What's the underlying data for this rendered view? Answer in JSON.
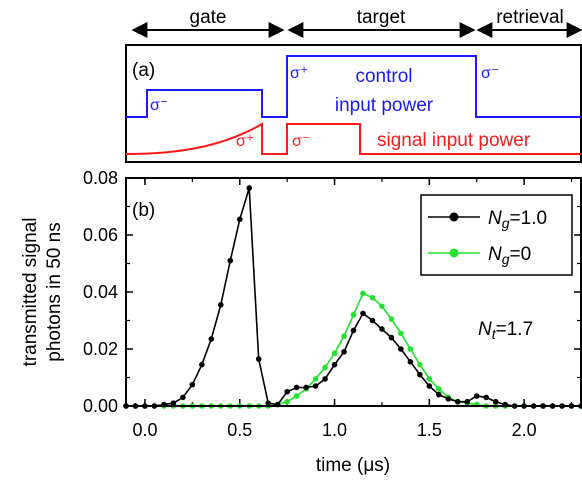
{
  "top_labels": {
    "gate": "gate",
    "target": "target",
    "retrieval": "retrieval"
  },
  "panel_a": {
    "label": "(a)",
    "control_label_line1": "control",
    "control_label_line2": "input power",
    "signal_label": "signal input power",
    "control_color": "#1a1aff",
    "signal_color": "#ff1a1a",
    "pulses": {
      "control_1": "σ⁻",
      "control_2": "σ⁺",
      "control_3": "σ⁻",
      "signal_1": "σ⁺",
      "signal_2": "σ⁻"
    }
  },
  "panel_b": {
    "label": "(b)",
    "annotation": "N",
    "annotation_sub": "t",
    "annotation_value": "=1.7"
  },
  "chart_data": {
    "type": "line",
    "xlabel": "time (μs)",
    "ylabel_line1": "transmitted signal",
    "ylabel_line2": "photons in 50 ns",
    "xlim": [
      -0.1,
      2.3
    ],
    "ylim": [
      0,
      0.08
    ],
    "xticks": [
      0.0,
      0.5,
      1.0,
      1.5,
      2.0
    ],
    "xtick_labels": [
      "0.0",
      "0.5",
      "1.0",
      "1.5",
      "2.0"
    ],
    "yticks": [
      0.0,
      0.02,
      0.04,
      0.06,
      0.08
    ],
    "ytick_labels": [
      "0.00",
      "0.02",
      "0.04",
      "0.06",
      "0.08"
    ],
    "grid": false,
    "legend_position": "top-right",
    "series": [
      {
        "name": "N",
        "name_sub": "g",
        "name_value": "=1.0",
        "color": "#000000",
        "x": [
          -0.1,
          -0.05,
          0.0,
          0.05,
          0.1,
          0.15,
          0.2,
          0.25,
          0.3,
          0.35,
          0.4,
          0.45,
          0.5,
          0.55,
          0.6,
          0.65,
          0.7,
          0.75,
          0.8,
          0.85,
          0.9,
          0.95,
          1.0,
          1.05,
          1.1,
          1.15,
          1.2,
          1.25,
          1.3,
          1.35,
          1.4,
          1.45,
          1.5,
          1.55,
          1.6,
          1.65,
          1.7,
          1.75,
          1.8,
          1.85,
          1.9,
          1.95,
          2.0,
          2.05,
          2.1,
          2.15,
          2.2,
          2.25,
          2.3
        ],
        "y": [
          0.0,
          0.0,
          0.0,
          0.0,
          0.0005,
          0.001,
          0.003,
          0.0075,
          0.0145,
          0.0235,
          0.0355,
          0.051,
          0.0655,
          0.0765,
          0.0165,
          0.001,
          0.0005,
          0.005,
          0.0065,
          0.0065,
          0.007,
          0.0095,
          0.0145,
          0.019,
          0.0265,
          0.0325,
          0.03,
          0.027,
          0.024,
          0.02,
          0.0155,
          0.011,
          0.007,
          0.004,
          0.0025,
          0.0015,
          0.0015,
          0.0035,
          0.003,
          0.0015,
          0.0005,
          0.0,
          0.0,
          0.0,
          0.0,
          0.0,
          0.0,
          0.0,
          0.0
        ]
      },
      {
        "name": "N",
        "name_sub": "g",
        "name_value": "=0",
        "color": "#22e22e",
        "x": [
          -0.1,
          -0.05,
          0.0,
          0.05,
          0.1,
          0.15,
          0.2,
          0.25,
          0.3,
          0.35,
          0.4,
          0.45,
          0.5,
          0.55,
          0.6,
          0.65,
          0.7,
          0.75,
          0.8,
          0.85,
          0.9,
          0.95,
          1.0,
          1.05,
          1.1,
          1.15,
          1.2,
          1.25,
          1.3,
          1.35,
          1.4,
          1.45,
          1.5,
          1.55,
          1.6,
          1.65,
          1.7,
          1.75,
          1.8,
          1.85,
          1.9,
          1.95,
          2.0,
          2.05,
          2.1,
          2.15,
          2.2,
          2.25,
          2.3
        ],
        "y": [
          0.0,
          0.0,
          0.0,
          0.0,
          0.0,
          0.0,
          0.0,
          0.0,
          0.0,
          0.0,
          0.0,
          0.0,
          0.0,
          0.0,
          0.0,
          0.0,
          0.0005,
          0.0015,
          0.0035,
          0.006,
          0.0095,
          0.0135,
          0.0185,
          0.0245,
          0.032,
          0.0395,
          0.038,
          0.035,
          0.0305,
          0.0255,
          0.02,
          0.0145,
          0.0095,
          0.006,
          0.003,
          0.0015,
          0.001,
          0.0005,
          0.0,
          0.0,
          0.0,
          0.0,
          0.0,
          0.0,
          0.0,
          0.0,
          0.0,
          0.0,
          0.0
        ]
      }
    ]
  }
}
